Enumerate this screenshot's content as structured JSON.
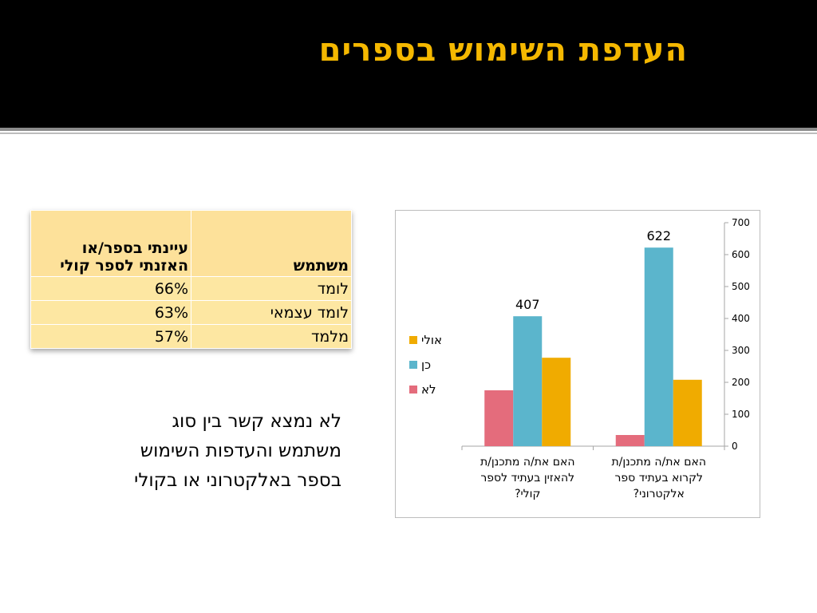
{
  "slide": {
    "title": "העדפת השימוש בספרים",
    "note_lines": [
      "לא נמצא קשר בין סוג",
      "משתמש והעדפות השימוש",
      "בספר באלקטרוני או בקולי"
    ]
  },
  "table": {
    "headers": [
      "משתמש",
      "עיינתי בספר/או האזנתי לספר קולי"
    ],
    "rows": [
      {
        "user": "לומד",
        "value": "66%"
      },
      {
        "user": "לומד עצמאי",
        "value": "63%"
      },
      {
        "user": "מלמד",
        "value": "57%"
      }
    ]
  },
  "chart_data": {
    "type": "bar",
    "categories": [
      [
        "האם את/ה מתכנן/ת",
        "להאזין בעתיד לספר",
        "קולי?"
      ],
      [
        "האם את/ה מתכנן/ת",
        "לקרוא בעתיד ספר",
        "אלקטרוני?"
      ]
    ],
    "series": [
      {
        "name": "לא",
        "color": "#e46c7c",
        "values": [
          175,
          35
        ]
      },
      {
        "name": "כן",
        "color": "#5bb5cc",
        "values": [
          407,
          622
        ]
      },
      {
        "name": "אולי",
        "color": "#f0ab00",
        "values": [
          277,
          208
        ]
      }
    ],
    "data_labels": [
      null,
      [
        "407",
        "622"
      ],
      null
    ],
    "ylim": [
      0,
      700
    ],
    "yticks": [
      0,
      100,
      200,
      300,
      400,
      500,
      600,
      700
    ],
    "y_axis_side": "right",
    "legend_order": [
      "אולי",
      "כן",
      "לא"
    ],
    "legend_placement": "left",
    "grid": false
  }
}
